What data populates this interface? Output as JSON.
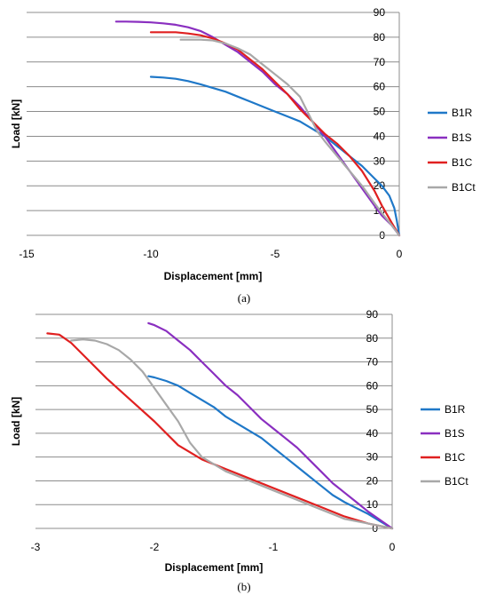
{
  "chart_data": [
    {
      "type": "line",
      "caption": "(a)",
      "xlabel": "Displacement [mm]",
      "ylabel": "Load [kN]",
      "xlim": [
        -15,
        0
      ],
      "ylim": [
        0,
        90
      ],
      "xticks": [
        "-15",
        "-10",
        "-5",
        "0"
      ],
      "yticks": [
        "0",
        "10",
        "20",
        "30",
        "40",
        "50",
        "60",
        "70",
        "80",
        "90"
      ],
      "grid": "horizontal",
      "legend_position": "right",
      "series": [
        {
          "name": "B1R",
          "color": "#1f78c8",
          "x": [
            0,
            -0.1,
            -0.2,
            -0.4,
            -0.7,
            -1.0,
            -1.5,
            -2.0,
            -2.5,
            -3.0,
            -3.5,
            -4.0,
            -4.5,
            -5.0,
            -5.5,
            -6.0,
            -6.5,
            -7.0,
            -7.5,
            -8.0,
            -8.5,
            -9.0,
            -9.5,
            -10.0
          ],
          "y": [
            0,
            6,
            11,
            16,
            20,
            23,
            28,
            32,
            36,
            40,
            43,
            46,
            48,
            50,
            52,
            54,
            56,
            58,
            59.5,
            61,
            62.3,
            63.2,
            63.7,
            64
          ]
        },
        {
          "name": "B1S",
          "color": "#8a2fc0",
          "x": [
            0,
            -0.3,
            -0.7,
            -1.0,
            -1.5,
            -2.0,
            -2.5,
            -3.0,
            -3.5,
            -4.0,
            -4.5,
            -5.0,
            -5.5,
            -6.0,
            -6.5,
            -7.0,
            -7.5,
            -8.0,
            -8.5,
            -9.0,
            -9.5,
            -10.0,
            -10.5,
            -11.0,
            -11.4
          ],
          "y": [
            0,
            4,
            8,
            12,
            19,
            26,
            33,
            40,
            46,
            52,
            57,
            61,
            66,
            70,
            74,
            77,
            80,
            82.5,
            84,
            85,
            85.6,
            86,
            86.2,
            86.3,
            86.3
          ]
        },
        {
          "name": "B1C",
          "color": "#e02020",
          "x": [
            0,
            -0.3,
            -0.7,
            -1.0,
            -1.5,
            -2.0,
            -2.5,
            -3.0,
            -3.5,
            -4.0,
            -4.5,
            -5.0,
            -5.5,
            -6.0,
            -6.5,
            -7.0,
            -7.5,
            -8.0,
            -8.5,
            -9.0,
            -9.5,
            -10.0
          ],
          "y": [
            0,
            5,
            12,
            18,
            26,
            32,
            37,
            41,
            46,
            51,
            57,
            62,
            67,
            71,
            75,
            77.5,
            79.5,
            80.8,
            81.5,
            82,
            82,
            82
          ]
        },
        {
          "name": "B1Ct",
          "color": "#a8a8a8",
          "x": [
            0,
            -0.3,
            -0.7,
            -1.0,
            -1.5,
            -2.0,
            -2.5,
            -3.0,
            -3.3,
            -3.6,
            -4.0,
            -4.5,
            -5.0,
            -5.5,
            -6.0,
            -6.5,
            -7.0,
            -7.5,
            -8.0,
            -8.5,
            -8.8
          ],
          "y": [
            0,
            4,
            9,
            13,
            20,
            26,
            32,
            38,
            42,
            48,
            56,
            61,
            65,
            69,
            73,
            75.5,
            77.5,
            78.7,
            79,
            79,
            79
          ]
        }
      ]
    },
    {
      "type": "line",
      "caption": "(b)",
      "xlabel": "Displacement [mm]",
      "ylabel": "Load [kN]",
      "xlim": [
        -3,
        0
      ],
      "ylim": [
        0,
        90
      ],
      "xticks": [
        "-3",
        "-2",
        "-1",
        "0"
      ],
      "yticks": [
        "0",
        "10",
        "20",
        "30",
        "40",
        "50",
        "60",
        "70",
        "80",
        "90"
      ],
      "grid": "horizontal",
      "legend_position": "right",
      "series": [
        {
          "name": "B1R",
          "color": "#1f78c8",
          "x": [
            0,
            -0.1,
            -0.2,
            -0.3,
            -0.4,
            -0.5,
            -0.6,
            -0.7,
            -0.8,
            -0.9,
            -1.0,
            -1.1,
            -1.2,
            -1.3,
            -1.4,
            -1.5,
            -1.6,
            -1.7,
            -1.8,
            -1.9,
            -2.0,
            -2.05
          ],
          "y": [
            0,
            3,
            6,
            8.5,
            11,
            14,
            18,
            22,
            26,
            30,
            34,
            38,
            41,
            44,
            47,
            51,
            54,
            57,
            60,
            62,
            63.5,
            64
          ]
        },
        {
          "name": "B1S",
          "color": "#8a2fc0",
          "x": [
            0,
            -0.1,
            -0.2,
            -0.3,
            -0.4,
            -0.5,
            -0.6,
            -0.7,
            -0.8,
            -0.9,
            -1.0,
            -1.1,
            -1.2,
            -1.3,
            -1.4,
            -1.5,
            -1.6,
            -1.7,
            -1.8,
            -1.9,
            -2.0,
            -2.05
          ],
          "y": [
            0,
            3.5,
            7,
            11,
            15,
            19,
            24,
            29,
            34,
            38,
            42,
            46,
            51,
            56,
            60,
            65,
            70,
            75,
            79,
            83,
            85.5,
            86.3
          ]
        },
        {
          "name": "B1C",
          "color": "#e02020",
          "x": [
            0,
            -0.2,
            -0.4,
            -0.6,
            -0.8,
            -1.0,
            -1.2,
            -1.4,
            -1.6,
            -1.8,
            -2.0,
            -2.2,
            -2.4,
            -2.6,
            -2.7,
            -2.8,
            -2.9
          ],
          "y": [
            0,
            2,
            5,
            9,
            13,
            17,
            21,
            25,
            29,
            35,
            45,
            54,
            63,
            73,
            78,
            81.5,
            82
          ]
        },
        {
          "name": "B1Ct",
          "color": "#a8a8a8",
          "x": [
            0,
            -0.2,
            -0.4,
            -0.6,
            -0.8,
            -1.0,
            -1.2,
            -1.4,
            -1.6,
            -1.7,
            -1.8,
            -1.9,
            -2.0,
            -2.1,
            -2.2,
            -2.3,
            -2.4,
            -2.5,
            -2.6,
            -2.7
          ],
          "y": [
            0,
            2,
            4,
            8,
            12,
            16,
            20,
            24,
            30,
            36,
            45,
            52,
            59,
            66,
            71,
            75,
            77.5,
            79,
            79.5,
            79
          ]
        }
      ]
    }
  ]
}
